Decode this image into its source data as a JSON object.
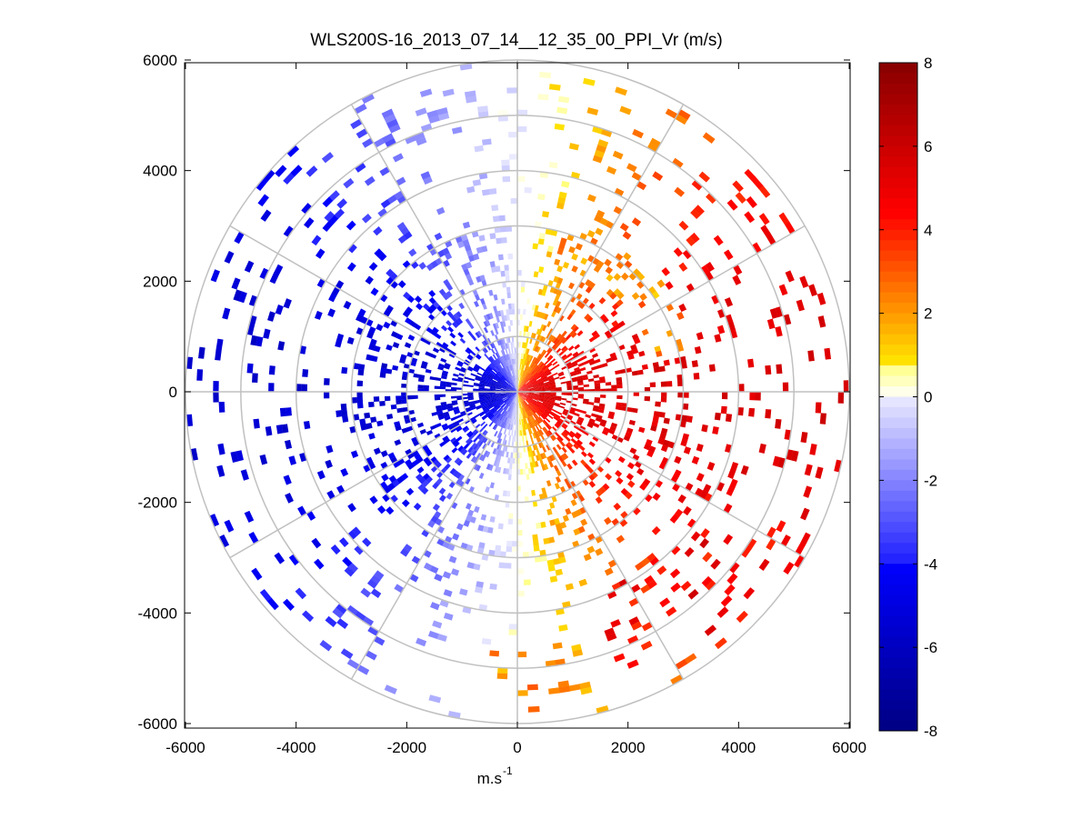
{
  "chart_data": {
    "type": "ppi",
    "title": "WLS200S-16_2013_07_14__12_35_00_PPI_Vr (m/s)",
    "xlabel_base": "m.s",
    "xlabel_exp": "-1",
    "ylabel": "",
    "xlim": [
      -6000,
      6000
    ],
    "ylim": [
      -6100,
      6100
    ],
    "x_ticks": [
      -6000,
      -4000,
      -2000,
      0,
      2000,
      4000,
      6000
    ],
    "y_ticks": [
      -6000,
      -4000,
      -2000,
      0,
      2000,
      4000,
      6000
    ],
    "x_tick_labels": [
      "-6000",
      "-4000",
      "-2000",
      "0",
      "2000",
      "4000",
      "6000"
    ],
    "y_tick_labels": [
      "-6000",
      "-4000",
      "-2000",
      "0",
      "2000",
      "4000",
      "6000"
    ],
    "range_rings": [
      1000,
      2000,
      3000,
      4000,
      5000,
      6000
    ],
    "spoke_angles_deg": [
      0,
      30,
      60,
      90,
      120,
      150,
      180,
      210,
      240,
      270,
      300,
      330
    ],
    "colorbar": {
      "min": -8,
      "max": 8,
      "ticks": [
        -8,
        -6,
        -4,
        -2,
        0,
        2,
        4,
        6,
        8
      ],
      "tick_labels": [
        "-8",
        "-6",
        "-4",
        "-2",
        "0",
        "2",
        "4",
        "6",
        "8"
      ],
      "colormap": "blue-white-red (cold/hot)"
    },
    "velocity_regions": [
      {
        "sector": "west (azimuth 190-355)",
        "range_m": [
          0,
          6000
        ],
        "vr_ms": -4.5,
        "note": "approaching, dark blue near center"
      },
      {
        "sector": "east (azimuth 10-175)",
        "range_m": [
          0,
          6000
        ],
        "vr_ms": 4.5,
        "note": "receding, red near center"
      },
      {
        "sector": "north-east arc",
        "range_m": [
          2500,
          3200
        ],
        "vr_ms": 2.0,
        "note": "orange/yellow"
      },
      {
        "sector": "south-east",
        "range_m": [
          4000,
          5500
        ],
        "vr_ms": 4.5,
        "note": "red/orange"
      },
      {
        "sector": "north/south (azimuth ~0, ~180)",
        "range_m": [
          0,
          6000
        ],
        "vr_ms": 0,
        "note": "near-zero, white/light"
      }
    ]
  },
  "colors": {
    "ring": "#c0c0c0",
    "axis": "#000000",
    "background": "#ffffff"
  }
}
